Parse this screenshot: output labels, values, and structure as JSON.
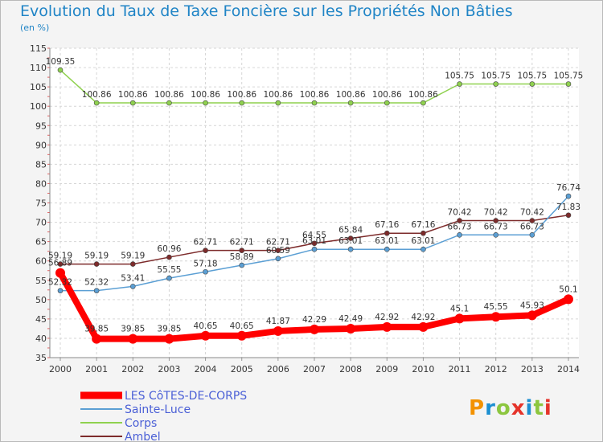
{
  "header": {
    "title": "Evolution du Taux de Taxe Foncière sur les Propriétés Non Bâties",
    "subtitle": "(en %)"
  },
  "logo": {
    "text": "Proxiti",
    "colors": [
      "#f39200",
      "#1c8fd1",
      "#8cc63f",
      "#e5332a",
      "#1c8fd1",
      "#8cc63f",
      "#e5332a"
    ]
  },
  "chart_data": {
    "type": "line",
    "x": [
      "2000",
      "2001",
      "2002",
      "2003",
      "2004",
      "2005",
      "2006",
      "2007",
      "2008",
      "2009",
      "2010",
      "2011",
      "2012",
      "2013",
      "2014"
    ],
    "ylim": [
      35,
      115
    ],
    "yticks": [
      35,
      40,
      45,
      50,
      55,
      60,
      65,
      70,
      75,
      80,
      85,
      90,
      95,
      100,
      105,
      110,
      115
    ],
    "grid": true,
    "legend_position": "bottom-left",
    "series": [
      {
        "name": "LES CôTES-DE-CORPS",
        "color": "#ff0000",
        "width": 8,
        "marker": 6,
        "values": [
          56.89,
          39.85,
          39.85,
          39.85,
          40.65,
          40.65,
          41.87,
          42.29,
          42.49,
          42.92,
          42.92,
          45.1,
          45.55,
          45.93,
          50.1
        ],
        "labels": [
          "56.89",
          "39.85",
          "39.85",
          "39.85",
          "40.65",
          "40.65",
          "41.87",
          "42.29",
          "42.49",
          "42.92",
          "42.92",
          "45.1",
          "45.55",
          "45.93",
          "50.1"
        ]
      },
      {
        "name": "Sainte-Luce",
        "color": "#5b9fd4",
        "width": 1.5,
        "marker": 3,
        "values": [
          52.32,
          52.32,
          53.41,
          55.55,
          57.18,
          58.89,
          60.59,
          63.01,
          63.01,
          63.01,
          63.01,
          66.73,
          66.73,
          66.73,
          76.74
        ],
        "labels": [
          "52.32",
          "52.32",
          "53.41",
          "55.55",
          "57.18",
          "58.89",
          "60.59",
          "63.01",
          "63.01",
          "63.01",
          "63.01",
          "66.73",
          "66.73",
          "66.73",
          "76.74"
        ]
      },
      {
        "name": "Corps",
        "color": "#8fd14f",
        "width": 1.5,
        "marker": 3,
        "values": [
          109.35,
          100.86,
          100.86,
          100.86,
          100.86,
          100.86,
          100.86,
          100.86,
          100.86,
          100.86,
          100.86,
          105.75,
          105.75,
          105.75,
          105.75
        ],
        "labels": [
          "109.35",
          "100.86",
          "100.86",
          "100.86",
          "100.86",
          "100.86",
          "100.86",
          "100.86",
          "100.86",
          "100.86",
          "100.86",
          "105.75",
          "105.75",
          "105.75",
          "105.75"
        ]
      },
      {
        "name": "Ambel",
        "color": "#7d2b2b",
        "width": 1.5,
        "marker": 3,
        "values": [
          59.19,
          59.19,
          59.19,
          60.96,
          62.71,
          62.71,
          62.71,
          64.55,
          65.84,
          67.16,
          67.16,
          70.42,
          70.42,
          70.42,
          71.83
        ],
        "labels": [
          "59.19",
          "59.19",
          "59.19",
          "60.96",
          "62.71",
          "62.71",
          "62.71",
          "64.55",
          "65.84",
          "67.16",
          "67.16",
          "70.42",
          "70.42",
          "70.42",
          "71.83"
        ]
      }
    ]
  }
}
